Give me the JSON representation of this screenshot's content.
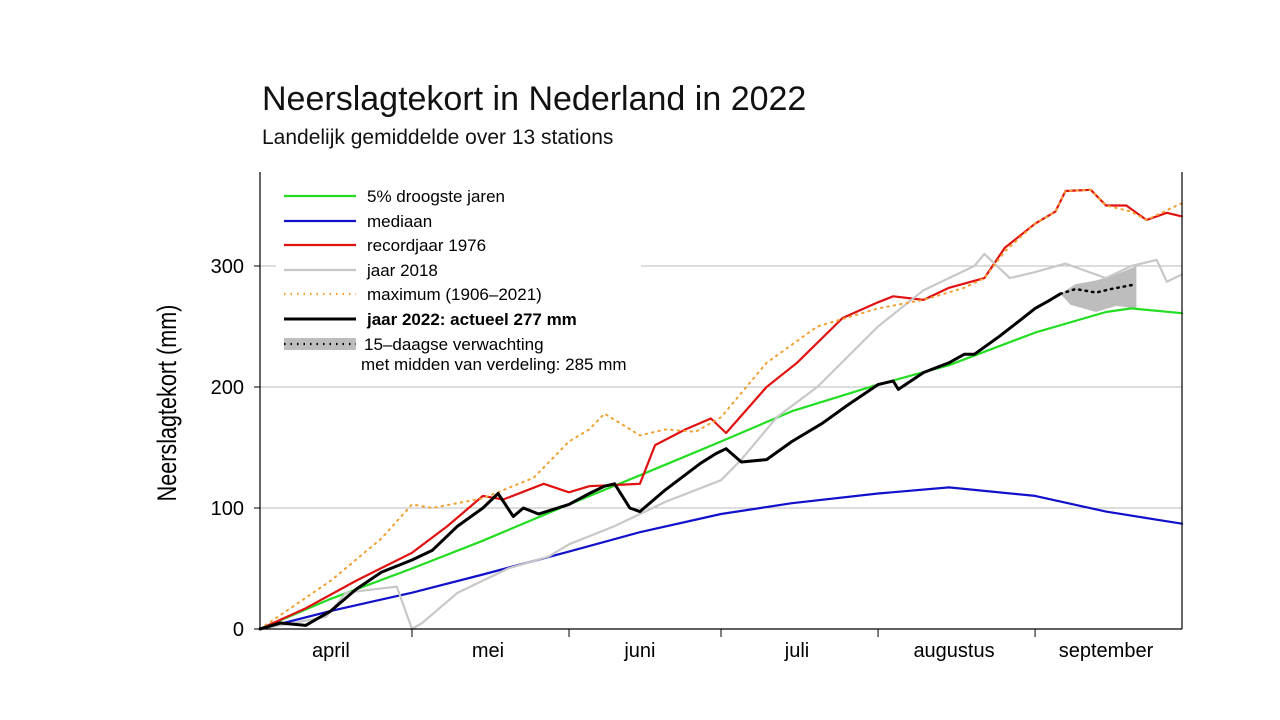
{
  "chart_data": {
    "type": "line",
    "title": "Neerslagtekort in Nederland in 2022",
    "subtitle": "Landelijk gemiddelde over 13 stations",
    "ylabel": "Neerslagtekort (mm)",
    "xlabel": "",
    "ylim": [
      0,
      375
    ],
    "xlim": [
      "04-01",
      "09-30"
    ],
    "yticks": [
      0,
      100,
      200,
      300
    ],
    "month_labels": [
      "april",
      "mei",
      "juni",
      "juli",
      "augustus",
      "september"
    ],
    "grid": true,
    "legend_position": "top-left",
    "x_unit": "date (2022, MM-DD)",
    "series": [
      {
        "name": "5% droogste jaren",
        "color": "#22dd22",
        "style": "solid",
        "points": [
          [
            "04-01",
            0
          ],
          [
            "04-15",
            25
          ],
          [
            "05-01",
            50
          ],
          [
            "05-15",
            73
          ],
          [
            "06-01",
            103
          ],
          [
            "06-15",
            127
          ],
          [
            "07-01",
            155
          ],
          [
            "07-15",
            180
          ],
          [
            "08-01",
            202
          ],
          [
            "08-15",
            218
          ],
          [
            "09-01",
            245
          ],
          [
            "09-15",
            262
          ],
          [
            "09-20",
            265
          ],
          [
            "09-30",
            261
          ]
        ]
      },
      {
        "name": "mediaan",
        "color": "#1111cc",
        "style": "solid",
        "points": [
          [
            "04-01",
            0
          ],
          [
            "04-15",
            15
          ],
          [
            "05-01",
            30
          ],
          [
            "05-15",
            45
          ],
          [
            "06-01",
            64
          ],
          [
            "06-15",
            80
          ],
          [
            "07-01",
            95
          ],
          [
            "07-15",
            104
          ],
          [
            "08-01",
            112
          ],
          [
            "08-15",
            117
          ],
          [
            "09-01",
            110
          ],
          [
            "09-15",
            97
          ],
          [
            "09-30",
            87
          ]
        ]
      },
      {
        "name": "recordjaar 1976",
        "color": "#e11111",
        "style": "solid",
        "points": [
          [
            "04-01",
            0
          ],
          [
            "04-10",
            17
          ],
          [
            "04-20",
            40
          ],
          [
            "05-01",
            63
          ],
          [
            "05-08",
            85
          ],
          [
            "05-15",
            110
          ],
          [
            "05-19",
            107
          ],
          [
            "05-27",
            120
          ],
          [
            "06-01",
            113
          ],
          [
            "06-05",
            118
          ],
          [
            "06-15",
            120
          ],
          [
            "06-18",
            152
          ],
          [
            "06-24",
            165
          ],
          [
            "06-29",
            174
          ],
          [
            "07-02",
            162
          ],
          [
            "07-10",
            200
          ],
          [
            "07-16",
            220
          ],
          [
            "07-25",
            257
          ],
          [
            "08-01",
            270
          ],
          [
            "08-04",
            275
          ],
          [
            "08-10",
            272
          ],
          [
            "08-15",
            282
          ],
          [
            "08-22",
            290
          ],
          [
            "08-26",
            315
          ],
          [
            "09-01",
            335
          ],
          [
            "09-05",
            345
          ],
          [
            "09-07",
            362
          ],
          [
            "09-12",
            363
          ],
          [
            "09-15",
            350
          ],
          [
            "09-19",
            350
          ],
          [
            "09-23",
            338
          ],
          [
            "09-27",
            344
          ],
          [
            "09-30",
            341
          ]
        ]
      },
      {
        "name": "jaar 2018",
        "color": "#c8c8c8",
        "style": "solid",
        "points": [
          [
            "04-01",
            0
          ],
          [
            "04-14",
            10
          ],
          [
            "04-18",
            30
          ],
          [
            "04-28",
            35
          ],
          [
            "05-01",
            0
          ],
          [
            "05-03",
            5
          ],
          [
            "05-10",
            30
          ],
          [
            "05-20",
            50
          ],
          [
            "05-28",
            60
          ],
          [
            "06-01",
            70
          ],
          [
            "06-10",
            85
          ],
          [
            "06-20",
            105
          ],
          [
            "07-01",
            123
          ],
          [
            "07-05",
            140
          ],
          [
            "07-12",
            175
          ],
          [
            "07-20",
            200
          ],
          [
            "08-01",
            250
          ],
          [
            "08-10",
            280
          ],
          [
            "08-20",
            300
          ],
          [
            "08-22",
            310
          ],
          [
            "08-27",
            290
          ],
          [
            "09-01",
            295
          ],
          [
            "09-07",
            302
          ],
          [
            "09-15",
            290
          ],
          [
            "09-20",
            300
          ],
          [
            "09-25",
            305
          ],
          [
            "09-27",
            287
          ],
          [
            "09-30",
            293
          ]
        ]
      },
      {
        "name": "maximum (1906–2021)",
        "color": "#f0a030",
        "style": "dotted",
        "points": [
          [
            "04-01",
            0
          ],
          [
            "04-15",
            40
          ],
          [
            "04-25",
            75
          ],
          [
            "05-01",
            103
          ],
          [
            "05-05",
            100
          ],
          [
            "05-15",
            108
          ],
          [
            "05-25",
            125
          ],
          [
            "06-01",
            155
          ],
          [
            "06-05",
            165
          ],
          [
            "06-08",
            178
          ],
          [
            "06-15",
            160
          ],
          [
            "06-20",
            165
          ],
          [
            "06-26",
            163
          ],
          [
            "07-01",
            175
          ],
          [
            "07-10",
            220
          ],
          [
            "07-20",
            250
          ],
          [
            "08-01",
            265
          ],
          [
            "08-10",
            272
          ],
          [
            "08-18",
            282
          ],
          [
            "08-22",
            290
          ],
          [
            "08-26",
            312
          ],
          [
            "09-01",
            335
          ],
          [
            "09-05",
            345
          ],
          [
            "09-07",
            362
          ],
          [
            "09-12",
            363
          ],
          [
            "09-15",
            350
          ],
          [
            "09-20",
            345
          ],
          [
            "09-23",
            338
          ],
          [
            "09-27",
            346
          ],
          [
            "09-30",
            352
          ]
        ]
      },
      {
        "name": "jaar 2022: actueel 277 mm",
        "color": "#000000",
        "style": "solid",
        "points": [
          [
            "04-01",
            0
          ],
          [
            "04-05",
            5
          ],
          [
            "04-10",
            3
          ],
          [
            "04-15",
            15
          ],
          [
            "04-20",
            33
          ],
          [
            "04-25",
            47
          ],
          [
            "05-01",
            57
          ],
          [
            "05-05",
            65
          ],
          [
            "05-10",
            85
          ],
          [
            "05-15",
            100
          ],
          [
            "05-18",
            112
          ],
          [
            "05-21",
            93
          ],
          [
            "05-23",
            100
          ],
          [
            "05-26",
            95
          ],
          [
            "06-01",
            103
          ],
          [
            "06-05",
            112
          ],
          [
            "06-08",
            118
          ],
          [
            "06-10",
            120
          ],
          [
            "06-13",
            100
          ],
          [
            "06-15",
            97
          ],
          [
            "06-20",
            115
          ],
          [
            "06-27",
            137
          ],
          [
            "06-30",
            145
          ],
          [
            "07-02",
            149
          ],
          [
            "07-05",
            138
          ],
          [
            "07-10",
            140
          ],
          [
            "07-15",
            155
          ],
          [
            "07-21",
            170
          ],
          [
            "07-26",
            185
          ],
          [
            "08-01",
            202
          ],
          [
            "08-04",
            205
          ],
          [
            "08-05",
            198
          ],
          [
            "08-10",
            212
          ],
          [
            "08-15",
            220
          ],
          [
            "08-18",
            227
          ],
          [
            "08-20",
            227
          ],
          [
            "08-25",
            242
          ],
          [
            "08-29",
            255
          ],
          [
            "09-01",
            265
          ],
          [
            "09-04",
            272
          ],
          [
            "09-06",
            277
          ]
        ]
      },
      {
        "name": "15–daagse verwachting met midden van verdeling: 285 mm",
        "color": "#000000",
        "style": "dotted",
        "band_color": "#bdbdbd",
        "points": [
          [
            "09-06",
            277
          ],
          [
            "09-09",
            281
          ],
          [
            "09-13",
            278
          ],
          [
            "09-16",
            281
          ],
          [
            "09-21",
            285
          ]
        ],
        "band_lower": [
          [
            "09-06",
            277
          ],
          [
            "09-08",
            268
          ],
          [
            "09-13",
            262
          ],
          [
            "09-17",
            267
          ],
          [
            "09-21",
            265
          ]
        ],
        "band_upper": [
          [
            "09-06",
            277
          ],
          [
            "09-09",
            285
          ],
          [
            "09-13",
            288
          ],
          [
            "09-17",
            293
          ],
          [
            "09-21",
            300
          ]
        ]
      }
    ]
  }
}
